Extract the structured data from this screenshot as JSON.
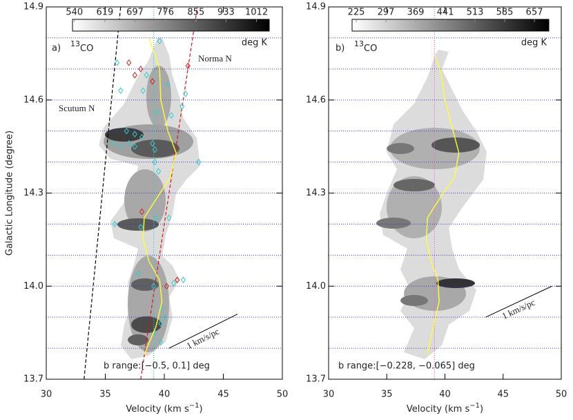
{
  "chart_data": [
    {
      "type": "pv-map",
      "panel_label": "a)",
      "tracer_isotope": "13",
      "tracer_molecule": "CO",
      "xlabel": [
        "Velocity (km s",
        "−1",
        ")"
      ],
      "ylabel": "Galactic Longitude (degree)",
      "xlim": [
        30,
        50
      ],
      "xticks": [
        30,
        35,
        40,
        45,
        50
      ],
      "ylim": [
        13.7,
        14.9
      ],
      "yticks": [
        13.7,
        {
          "value": 14.0,
          "label": "14.0"
        },
        14.3,
        14.6,
        14.9
      ],
      "grid_y": [
        13.8,
        13.9,
        14.0,
        14.1,
        14.2,
        14.3,
        14.4,
        14.5,
        14.6,
        14.7,
        14.8
      ],
      "grid_color": "#3333cc",
      "colorbar_lim": [
        535,
        1045
      ],
      "colorbar_ticks": [
        540,
        619,
        697,
        776,
        855,
        933,
        1012
      ],
      "colorbar_unit": "deg K",
      "vline": {
        "x": 39.1,
        "color": "#33cccc"
      },
      "curve": {
        "color": "#ffff33",
        "x": [
          38.7,
          39.6,
          39.7,
          40.3,
          41.0,
          40.5,
          39.3,
          38.3,
          38.2,
          38.7,
          39.6,
          39.8,
          39.3,
          38.3
        ],
        "y": [
          14.8,
          14.7,
          14.6,
          14.5,
          14.43,
          14.35,
          14.28,
          14.22,
          14.15,
          14.08,
          14.02,
          13.95,
          13.87,
          13.78
        ]
      },
      "arms": [
        {
          "name": "Scutum N",
          "color": "#000000",
          "x": [
            33.2,
            36.3
          ],
          "y": [
            13.7,
            14.9
          ]
        },
        {
          "name": "Norma N",
          "color": "#dd1111",
          "x": [
            38.0,
            42.8
          ],
          "y": [
            13.7,
            14.9
          ]
        }
      ],
      "markers": [
        {
          "color": "#33cccc",
          "x": [
            36.0,
            38.5,
            39.6,
            36.3,
            38.2,
            40.3,
            41.8,
            41.5,
            39.4,
            40.6,
            36.8,
            37.5,
            38.1,
            35.6,
            36.3,
            37.0,
            37.5,
            39.0,
            39.2,
            39.2,
            39.5,
            42.9,
            35.8,
            38.0,
            39.3,
            40.4,
            37.8,
            39.1,
            40.8,
            41.6,
            39.8,
            40.0,
            39.7,
            39.2,
            39.7
          ],
          "y": [
            14.72,
            14.68,
            14.79,
            14.63,
            14.63,
            14.65,
            14.62,
            14.58,
            14.56,
            14.55,
            14.5,
            14.49,
            14.48,
            14.46,
            14.45,
            14.46,
            14.45,
            14.46,
            14.44,
            14.4,
            14.37,
            14.4,
            14.2,
            14.19,
            14.22,
            14.22,
            14.04,
            14.0,
            14.01,
            14.02,
            13.93,
            13.9,
            13.88,
            13.85,
            13.82
          ]
        },
        {
          "color": "#cc2222",
          "x": [
            37.0,
            42.0,
            38.0,
            37.5,
            39.0,
            38.1,
            41.1,
            40.2
          ],
          "y": [
            14.72,
            14.71,
            14.7,
            14.68,
            14.66,
            14.24,
            14.02,
            14.0
          ]
        }
      ],
      "scale_bar": {
        "label": "1 km/s/pc",
        "x": [
          40.4,
          46.2
        ],
        "y": [
          13.8,
          13.91
        ]
      },
      "b_range_label": "b range:[−0.5, 0.1] deg"
    },
    {
      "type": "pv-map",
      "panel_label": "b)",
      "tracer_isotope": "13",
      "tracer_molecule": "CO",
      "xlabel": [
        "Velocity (km s",
        "−1",
        ")"
      ],
      "xlim": [
        30,
        50
      ],
      "xticks": [
        30,
        35,
        40,
        45,
        50
      ],
      "ylim": [
        13.7,
        14.9
      ],
      "yticks": [
        13.7,
        {
          "value": 14.0,
          "label": "14.0"
        },
        14.3,
        14.6,
        14.9
      ],
      "grid_y": [
        13.8,
        13.9,
        14.0,
        14.1,
        14.2,
        14.3,
        14.4,
        14.5,
        14.6,
        14.7,
        14.8
      ],
      "grid_color": "#3333cc",
      "colorbar_lim": [
        215,
        692
      ],
      "colorbar_ticks": [
        225,
        297,
        369,
        441,
        513,
        585,
        657
      ],
      "colorbar_unit": "deg K",
      "vline": {
        "x": 39.1,
        "color": "#ee66cc"
      },
      "curve": {
        "color": "#ffff33",
        "x": [
          39.2,
          39.7,
          40.0,
          40.7,
          41.2,
          40.8,
          39.5,
          38.5,
          38.4,
          38.8,
          39.4,
          39.5,
          39.0,
          38.5
        ],
        "y": [
          14.74,
          14.68,
          14.6,
          14.5,
          14.43,
          14.35,
          14.28,
          14.22,
          14.15,
          14.08,
          14.02,
          13.95,
          13.87,
          13.78
        ]
      },
      "scale_bar": {
        "label": "1 km/s/pc",
        "x": [
          43.5,
          49.2
        ],
        "y": [
          13.9,
          14.0
        ]
      },
      "b_range_label": "b range:[−0.228, −0.065] deg"
    }
  ]
}
